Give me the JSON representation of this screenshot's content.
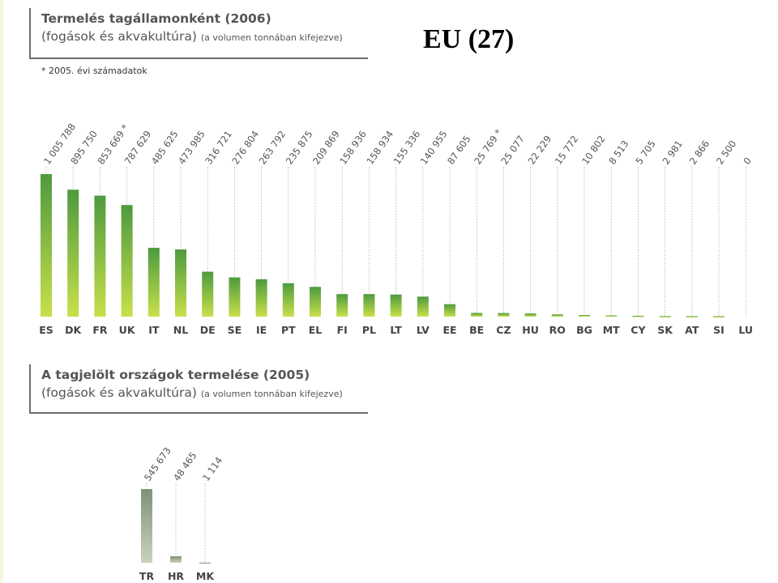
{
  "page": {
    "region_title": "EU (27)",
    "footnote": "* 2005. évi számadatok"
  },
  "section1": {
    "title": "Termelés tagállamonként (2006)",
    "subtitle_main": "(fogások és akvakultúra)",
    "subtitle_small": "(a volumen tonnában kifejezve)"
  },
  "section2": {
    "title": "A tagjelölt országok termelése (2005)",
    "subtitle_main": "(fogások és akvakultúra)",
    "subtitle_small": "(a volumen tonnában kifejezve)"
  },
  "chart_data": [
    {
      "type": "bar",
      "title": "Termelés tagállamonként (2006)",
      "ylabel": "",
      "xlabel": "",
      "categories": [
        "ES",
        "DK",
        "FR",
        "UK",
        "IT",
        "NL",
        "DE",
        "SE",
        "IE",
        "PT",
        "EL",
        "FI",
        "PL",
        "LT",
        "LV",
        "EE",
        "BE",
        "CZ",
        "HU",
        "RO",
        "BG",
        "MT",
        "CY",
        "SK",
        "AT",
        "SI",
        "LU"
      ],
      "values": [
        1005788,
        895750,
        853669,
        787629,
        485625,
        473985,
        316721,
        276804,
        263792,
        235875,
        209869,
        158936,
        158934,
        155336,
        140955,
        87605,
        25769,
        25077,
        22229,
        15772,
        10802,
        8513,
        5705,
        2981,
        2866,
        2500,
        0
      ],
      "value_labels": [
        "1 005 788",
        "895 750",
        "853 669 *",
        "787 629",
        "485 625",
        "473 985",
        "316 721",
        "276 804",
        "263 792",
        "235 875",
        "209 869",
        "158 936",
        "158 934",
        "155 336",
        "140 955",
        "87 605",
        "25 769 *",
        "25 077",
        "22 229",
        "15 772",
        "10 802",
        "8 513",
        "5 705",
        "2 981",
        "2 866",
        "2 500",
        "0"
      ],
      "ylim": [
        0,
        1005788
      ],
      "grid": false,
      "colors": {
        "top": "#4e9a3f",
        "bottom": "#c7e04a"
      }
    },
    {
      "type": "bar",
      "title": "A tagjelölt országok termelése (2005)",
      "ylabel": "",
      "xlabel": "",
      "categories": [
        "TR",
        "HR",
        "MK"
      ],
      "values": [
        545673,
        48465,
        1114
      ],
      "value_labels": [
        "545 673",
        "48 465",
        "1 114"
      ],
      "ylim": [
        0,
        545673
      ],
      "grid": false,
      "colors": {
        "top": "#7f9278",
        "bottom": "#c9d2bf"
      }
    }
  ]
}
